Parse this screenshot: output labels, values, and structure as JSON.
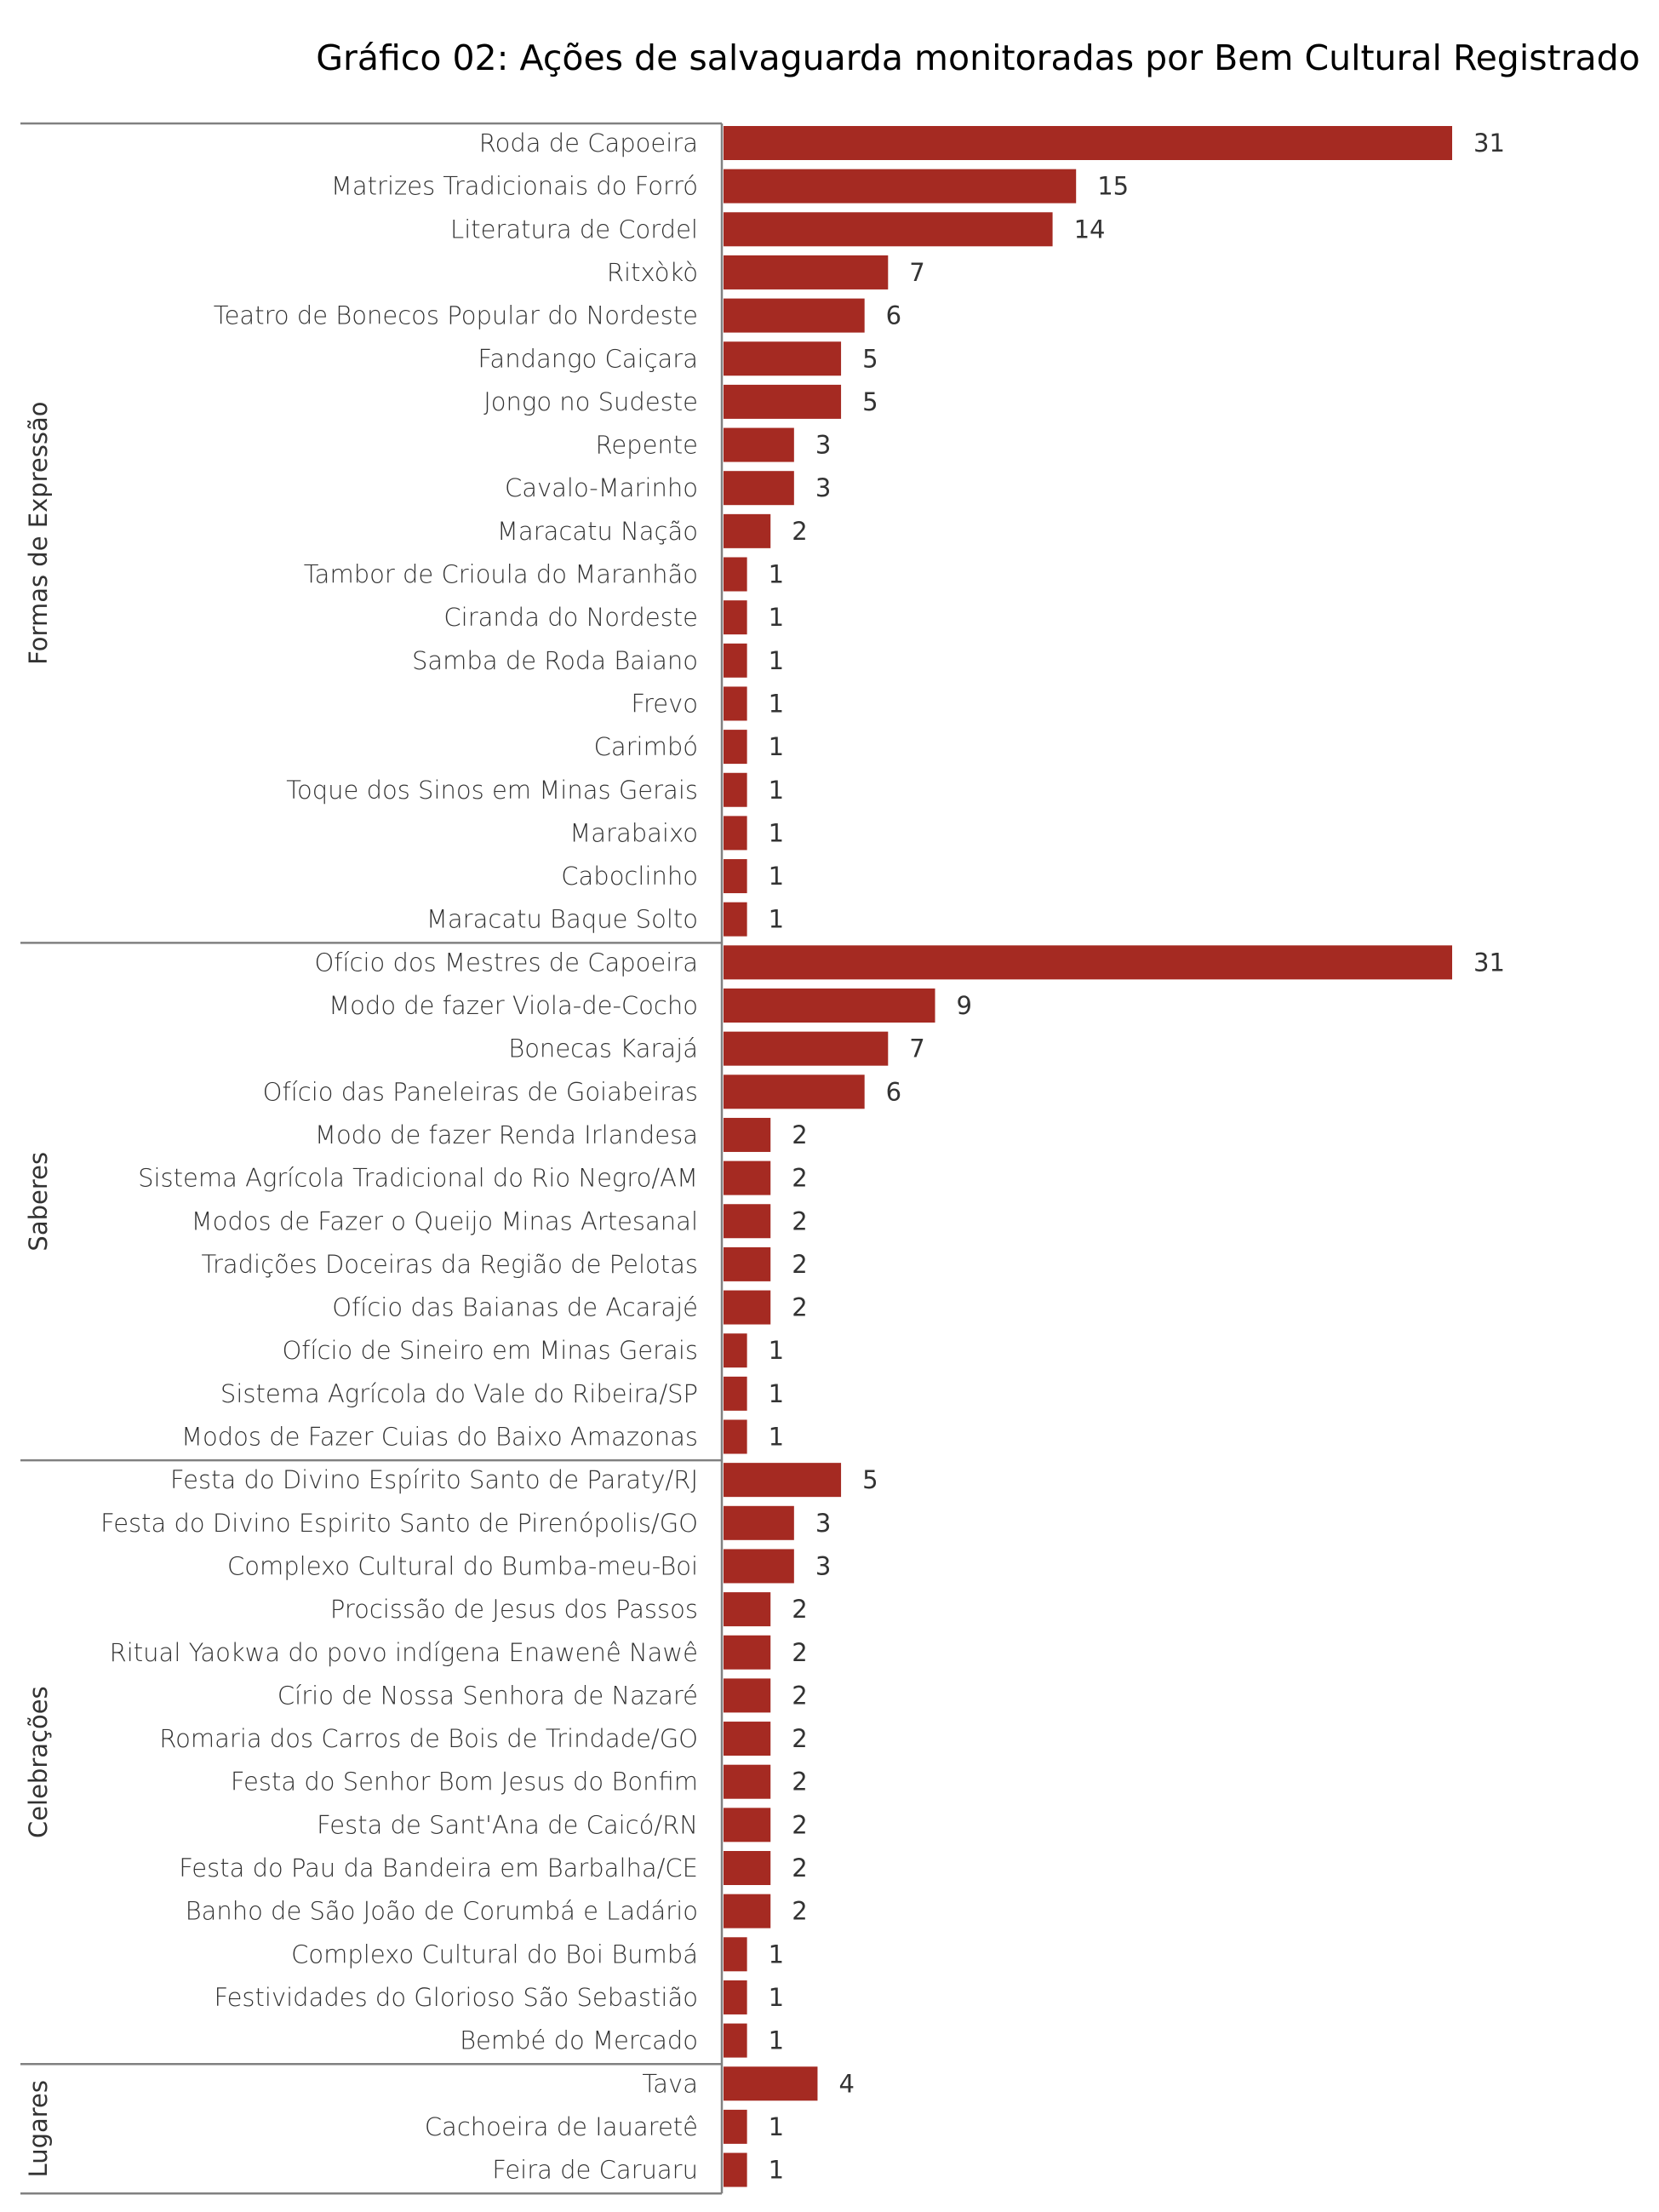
{
  "colors": {
    "bar": "#A52A22",
    "axis": "#808080",
    "text": "#333333"
  },
  "chart_data": {
    "type": "bar",
    "orientation": "horizontal",
    "title": "Gráfico 02: Ações de salvaguarda monitoradas por Bem Cultural Registrado",
    "xlabel": "",
    "ylabel": "",
    "xlim": [
      0,
      31
    ],
    "grid": false,
    "legend": "none",
    "groups": [
      {
        "name": "Formas de Expressão",
        "categories": [
          "Roda de Capoeira",
          "Matrizes Tradicionais do Forró",
          "Literatura de Cordel",
          "Ritxòkò",
          "Teatro de Bonecos Popular do Nordeste",
          "Fandango Caiçara",
          "Jongo no Sudeste",
          "Repente",
          "Cavalo-Marinho",
          "Maracatu Nação",
          "Tambor de Crioula do Maranhão",
          "Ciranda do Nordeste",
          "Samba de Roda Baiano",
          "Frevo",
          "Carimbó",
          "Toque dos Sinos em Minas Gerais",
          "Marabaixo",
          "Caboclinho",
          "Maracatu Baque Solto"
        ],
        "values": [
          31,
          15,
          14,
          7,
          6,
          5,
          5,
          3,
          3,
          2,
          1,
          1,
          1,
          1,
          1,
          1,
          1,
          1,
          1
        ]
      },
      {
        "name": "Saberes",
        "categories": [
          "Ofício dos Mestres de Capoeira",
          "Modo de fazer Viola-de-Cocho",
          "Bonecas Karajá",
          "Ofício das Paneleiras de Goiabeiras",
          "Modo de fazer Renda Irlandesa",
          "Sistema Agrícola Tradicional do Rio Negro/AM",
          "Modos de Fazer o Queijo Minas Artesanal",
          "Tradições Doceiras da Região de Pelotas",
          "Ofício das Baianas de Acarajé",
          "Ofício de Sineiro em Minas Gerais",
          "Sistema Agrícola do Vale do Ribeira/SP",
          "Modos de Fazer Cuias do Baixo Amazonas"
        ],
        "values": [
          31,
          9,
          7,
          6,
          2,
          2,
          2,
          2,
          2,
          1,
          1,
          1
        ]
      },
      {
        "name": "Celebrações",
        "categories": [
          "Festa do Divino Espírito Santo de Paraty/RJ",
          "Festa do Divino Espirito Santo de Pirenópolis/GO",
          "Complexo Cultural do Bumba-meu-Boi",
          "Procissão de Jesus dos Passos",
          "Ritual Yaokwa do povo indígena Enawenê Nawê",
          "Círio de Nossa Senhora de Nazaré",
          "Romaria dos Carros de Bois de Trindade/GO",
          "Festa do Senhor Bom Jesus do Bonfim",
          "Festa de Sant'Ana de Caicó/RN",
          "Festa do Pau da Bandeira em Barbalha/CE",
          "Banho de São João de Corumbá e Ladário",
          "Complexo Cultural do Boi Bumbá",
          "Festividades do Glorioso São Sebastião",
          "Bembé do Mercado"
        ],
        "values": [
          5,
          3,
          3,
          2,
          2,
          2,
          2,
          2,
          2,
          2,
          2,
          1,
          1,
          1
        ]
      },
      {
        "name": "Lugares",
        "categories": [
          "Tava",
          "Cachoeira de Iauaretê",
          "Feira de Caruaru"
        ],
        "values": [
          4,
          1,
          1
        ]
      }
    ]
  }
}
